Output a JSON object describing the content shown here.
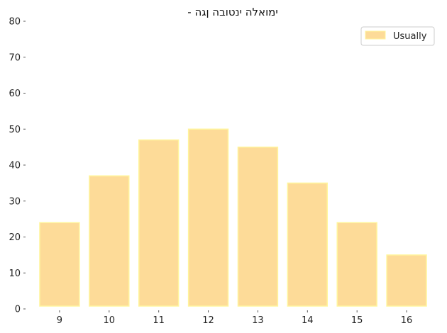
{
  "chart_data": {
    "type": "bar",
    "title": "- ימואלה ינטובה ןגה",
    "xlabel": "",
    "ylabel": "",
    "categories": [
      "9",
      "10",
      "11",
      "12",
      "13",
      "14",
      "15",
      "16"
    ],
    "series": [
      {
        "name": "Usually",
        "values": [
          24,
          37,
          47,
          50,
          45,
          35,
          24,
          15
        ]
      }
    ],
    "ylim": [
      0,
      80
    ],
    "yticks": [
      0,
      10,
      20,
      30,
      40,
      50,
      60,
      70,
      80
    ],
    "grid": false,
    "legend_position": "top-right",
    "colors": {
      "bar_fill": "#fddb98",
      "bar_edge": "#fff59d"
    }
  }
}
